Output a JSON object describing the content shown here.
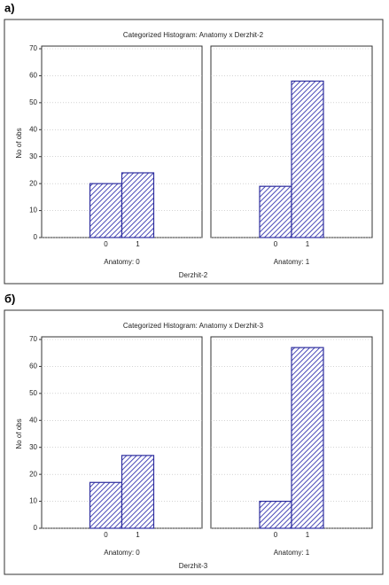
{
  "figure_labels": [
    "а)",
    "б)"
  ],
  "chart_data": [
    {
      "type": "bar",
      "title": "Categorized Histogram: Anatomy x Derzhit-2",
      "ylabel": "No of obs",
      "xlabel": "Derzhit-2",
      "ylim": [
        0,
        70
      ],
      "yticks": [
        0,
        10,
        20,
        30,
        40,
        50,
        60,
        70
      ],
      "grid": true,
      "color": "#2e2e9e",
      "panels": [
        {
          "label": "Anatomy: 0",
          "categories": [
            "0",
            "1"
          ],
          "values": [
            20,
            24
          ]
        },
        {
          "label": "Anatomy: 1",
          "categories": [
            "0",
            "1"
          ],
          "values": [
            19,
            58
          ]
        }
      ]
    },
    {
      "type": "bar",
      "title": "Categorized Histogram: Anatomy x Derzhit-3",
      "ylabel": "No of obs",
      "xlabel": "Derzhit-3",
      "ylim": [
        0,
        70
      ],
      "yticks": [
        0,
        10,
        20,
        30,
        40,
        50,
        60,
        70
      ],
      "grid": true,
      "color": "#2e2e9e",
      "panels": [
        {
          "label": "Anatomy: 0",
          "categories": [
            "0",
            "1"
          ],
          "values": [
            17,
            27
          ]
        },
        {
          "label": "Anatomy: 1",
          "categories": [
            "0",
            "1"
          ],
          "values": [
            10,
            67
          ]
        }
      ]
    }
  ]
}
